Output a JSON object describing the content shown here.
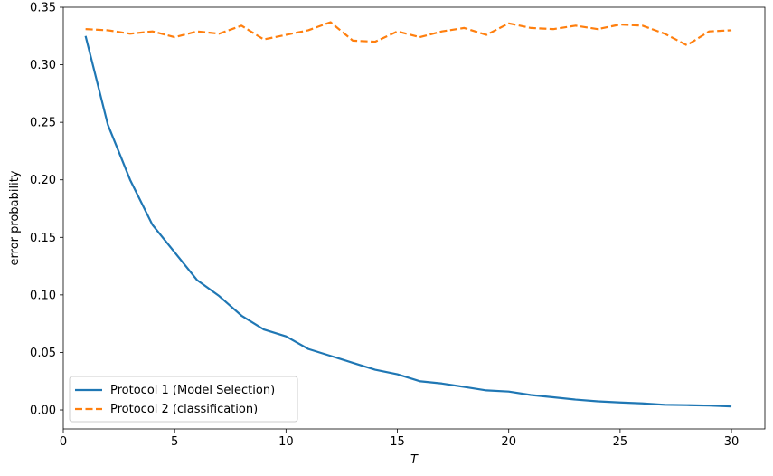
{
  "chart_data": {
    "type": "line",
    "title": "",
    "xlabel": "T",
    "ylabel": "error probability",
    "xlim": [
      0,
      31.5
    ],
    "ylim": [
      -0.0165,
      0.35
    ],
    "xticks": [
      0,
      5,
      10,
      15,
      20,
      25,
      30
    ],
    "yticks": [
      0.0,
      0.05,
      0.1,
      0.15,
      0.2,
      0.25,
      0.3,
      0.35
    ],
    "ytick_labels": [
      "0.00",
      "0.05",
      "0.10",
      "0.15",
      "0.20",
      "0.25",
      "0.30",
      "0.35"
    ],
    "grid": false,
    "legend_position": "lower-left",
    "x": [
      1,
      2,
      3,
      4,
      5,
      6,
      7,
      8,
      9,
      10,
      11,
      12,
      13,
      14,
      15,
      16,
      17,
      18,
      19,
      20,
      21,
      22,
      23,
      24,
      25,
      26,
      27,
      28,
      29,
      30
    ],
    "series": [
      {
        "name": "Protocol 1 (Model Selection)",
        "color": "#1f77b4",
        "style": "solid",
        "values": [
          0.325,
          0.248,
          0.2,
          0.161,
          0.137,
          0.113,
          0.099,
          0.082,
          0.07,
          0.064,
          0.053,
          0.047,
          0.041,
          0.035,
          0.031,
          0.025,
          0.023,
          0.02,
          0.017,
          0.016,
          0.013,
          0.011,
          0.009,
          0.0075,
          0.0065,
          0.0057,
          0.0045,
          0.0042,
          0.0038,
          0.003
        ]
      },
      {
        "name": "Protocol 2 (classification)",
        "color": "#ff7f0e",
        "style": "dashed",
        "values": [
          0.331,
          0.33,
          0.327,
          0.329,
          0.324,
          0.329,
          0.327,
          0.334,
          0.322,
          0.326,
          0.33,
          0.337,
          0.321,
          0.32,
          0.329,
          0.324,
          0.329,
          0.332,
          0.326,
          0.336,
          0.332,
          0.331,
          0.334,
          0.331,
          0.335,
          0.334,
          0.327,
          0.317,
          0.329,
          0.33
        ]
      }
    ]
  }
}
